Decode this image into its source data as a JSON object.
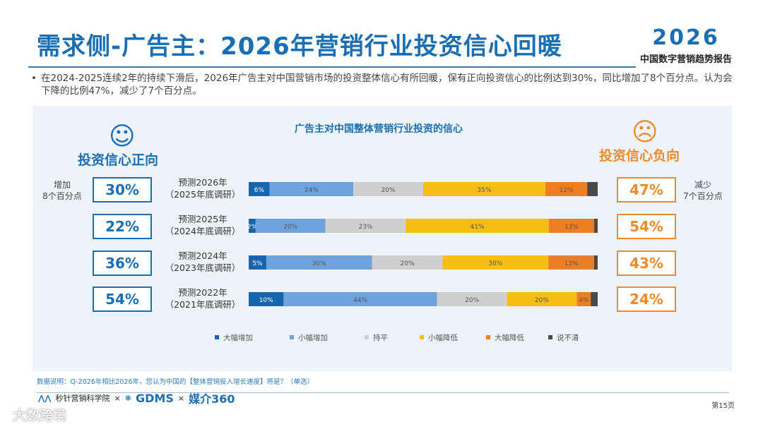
{
  "header": {
    "title": "需求侧-广告主：2026年营销行业投资信心回暖",
    "brand_year": "2026",
    "brand_subtitle": "中国数字营销趋势报告"
  },
  "bullet_text": "在2024-2025连续2年的持续下滑后，2026年广告主对中国营销市场的投资整体信心有所回暖，保有正向投资信心的比例达到30%，同比增加了8个百分点。认为会下降的比例47%，减少了7个百分点。",
  "positive": {
    "title": "投资信心正向",
    "note_line1": "增加",
    "note_line2": "8个百分点",
    "color": "#1a6fb4",
    "values": [
      "30%",
      "22%",
      "36%",
      "54%"
    ]
  },
  "negative": {
    "title": "投资信心负向",
    "note_line1": "减少",
    "note_line2": "7个百分点",
    "color": "#f08a28",
    "values": [
      "47%",
      "54%",
      "43%",
      "24%"
    ]
  },
  "chart_data": {
    "type": "bar",
    "orientation": "horizontal-stacked-100",
    "title": "广告主对中国整体营销行业投资的信心",
    "categories": [
      {
        "line1": "预测2026年",
        "line2": "（2025年底调研）"
      },
      {
        "line1": "预测2025年",
        "line2": "（2024年底调研）"
      },
      {
        "line1": "预测2024年",
        "line2": "（2023年底调研）"
      },
      {
        "line1": "预测2022年",
        "line2": "（2021年底调研）"
      }
    ],
    "series": [
      {
        "name": "大幅增加",
        "color": "#1565b0",
        "values": [
          6,
          2,
          5,
          10
        ]
      },
      {
        "name": "小幅增加",
        "color": "#6fa3e0",
        "values": [
          24,
          20,
          30,
          44
        ]
      },
      {
        "name": "持平",
        "color": "#cfcfcf",
        "values": [
          20,
          23,
          20,
          20
        ]
      },
      {
        "name": "小幅降低",
        "color": "#f7bd14",
        "values": [
          35,
          41,
          30,
          20
        ]
      },
      {
        "name": "大幅降低",
        "color": "#ef7d22",
        "values": [
          12,
          13,
          13,
          4
        ]
      },
      {
        "name": "说不清",
        "color": "#4a4a4a",
        "values": [
          3,
          1,
          1,
          2
        ]
      }
    ],
    "legend_position": "bottom"
  },
  "footnote": "数据说明：Q-2026年相比2026年，您认为中国的【整体营销投入增长速度】将是？（单选）",
  "logos": {
    "logo1": "秒针营销科学院",
    "times": "×",
    "logo2": "GDMS",
    "logo3": "媒介360"
  },
  "page_number": "第15页",
  "watermark": "大数跨境"
}
